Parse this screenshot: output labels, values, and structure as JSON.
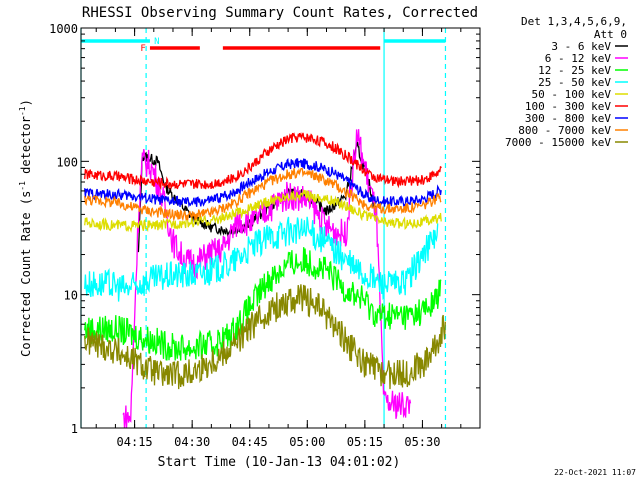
{
  "chart_data": {
    "type": "line",
    "title": "RHESSI Observing Summary Count Rates, Corrected",
    "xlabel": "Start Time (10-Jan-13 04:01:02)",
    "ylabel_main": "Corrected Count Rate (s",
    "ylabel_sup1": "-1",
    "ylabel_mid": " detector",
    "ylabel_sup2": "-1",
    "ylabel_end": ")",
    "y_scale": "log",
    "ylim": [
      1,
      1000
    ],
    "xlim": [
      "04:01:02",
      "05:45:00"
    ],
    "x_ticks": [
      "04:15",
      "04:30",
      "04:45",
      "05:00",
      "05:15",
      "05:30"
    ],
    "y_ticks": [
      "1",
      "10",
      "100",
      "1000"
    ],
    "legend_header": [
      "Det 1,3,4,5,6,9,",
      "Att 0"
    ],
    "legend_position": "right",
    "series": [
      {
        "name": "3 - 6 keV",
        "color": "#000000",
        "points": [
          [
            "04:16",
            20
          ],
          [
            "04:17",
            110
          ],
          [
            "04:19",
            105
          ],
          [
            "04:21",
            100
          ],
          [
            "04:23",
            65
          ],
          [
            "04:25",
            55
          ],
          [
            "04:30",
            38
          ],
          [
            "04:35",
            32
          ],
          [
            "04:40",
            30
          ],
          [
            "04:45",
            34
          ],
          [
            "04:50",
            45
          ],
          [
            "04:55",
            58
          ],
          [
            "05:00",
            55
          ],
          [
            "05:05",
            42
          ],
          [
            "05:10",
            55
          ],
          [
            "05:13",
            130
          ],
          [
            "05:16",
            70
          ],
          [
            "05:18",
            40
          ]
        ]
      },
      {
        "name": "6 - 12 keV",
        "color": "#ff00ff",
        "points": [
          [
            "04:12",
            1.2
          ],
          [
            "04:14",
            1.2
          ],
          [
            "04:16",
            40
          ],
          [
            "04:17",
            100
          ],
          [
            "04:19",
            95
          ],
          [
            "04:21",
            70
          ],
          [
            "04:23",
            45
          ],
          [
            "04:25",
            25
          ],
          [
            "04:28",
            18
          ],
          [
            "04:31",
            17
          ],
          [
            "04:34",
            20
          ],
          [
            "04:38",
            22
          ],
          [
            "04:42",
            36
          ],
          [
            "04:46",
            35
          ],
          [
            "04:50",
            44
          ],
          [
            "04:55",
            56
          ],
          [
            "05:00",
            52
          ],
          [
            "05:05",
            32
          ],
          [
            "05:10",
            28
          ],
          [
            "05:13",
            160
          ],
          [
            "05:15",
            90
          ],
          [
            "05:18",
            40
          ],
          [
            "05:20",
            1.5
          ],
          [
            "05:27",
            1.5
          ]
        ]
      },
      {
        "name": "12 - 25 keV",
        "color": "#00ff00",
        "points": [
          [
            "04:02",
            5.5
          ],
          [
            "04:10",
            5.5
          ],
          [
            "04:15",
            5.0
          ],
          [
            "04:20",
            4.5
          ],
          [
            "04:25",
            4.0
          ],
          [
            "04:30",
            4.0
          ],
          [
            "04:35",
            4.2
          ],
          [
            "04:40",
            5.0
          ],
          [
            "04:45",
            8.0
          ],
          [
            "04:50",
            13
          ],
          [
            "04:55",
            17
          ],
          [
            "05:00",
            18
          ],
          [
            "05:05",
            15
          ],
          [
            "05:10",
            11
          ],
          [
            "05:15",
            9
          ],
          [
            "05:18",
            7
          ],
          [
            "05:22",
            7
          ],
          [
            "05:27",
            7
          ],
          [
            "05:32",
            8
          ],
          [
            "05:35",
            11
          ]
        ]
      },
      {
        "name": "25 - 50 keV",
        "color": "#00ffff",
        "points": [
          [
            "04:02",
            12
          ],
          [
            "04:08",
            12
          ],
          [
            "04:13",
            11
          ],
          [
            "04:16",
            12
          ],
          [
            "04:20",
            13
          ],
          [
            "04:25",
            14
          ],
          [
            "04:30",
            14
          ],
          [
            "04:35",
            15
          ],
          [
            "04:40",
            17
          ],
          [
            "04:45",
            22
          ],
          [
            "04:50",
            27
          ],
          [
            "04:55",
            30
          ],
          [
            "05:00",
            30
          ],
          [
            "05:05",
            25
          ],
          [
            "05:10",
            18
          ],
          [
            "05:15",
            14
          ],
          [
            "05:20",
            12
          ],
          [
            "05:25",
            12
          ],
          [
            "05:28",
            16
          ],
          [
            "05:31",
            22
          ],
          [
            "05:34",
            30
          ]
        ]
      },
      {
        "name": "50 - 100 keV",
        "color": "#dddd00",
        "points": [
          [
            "04:02",
            35
          ],
          [
            "04:05",
            34
          ],
          [
            "04:10",
            33
          ],
          [
            "04:15",
            33
          ],
          [
            "04:20",
            33
          ],
          [
            "04:25",
            34
          ],
          [
            "04:30",
            35
          ],
          [
            "04:35",
            36
          ],
          [
            "04:40",
            39
          ],
          [
            "04:45",
            44
          ],
          [
            "04:50",
            50
          ],
          [
            "04:55",
            55
          ],
          [
            "05:00",
            56
          ],
          [
            "05:05",
            52
          ],
          [
            "05:10",
            47
          ],
          [
            "05:15",
            39
          ],
          [
            "05:20",
            35
          ],
          [
            "05:25",
            34
          ],
          [
            "05:30",
            35
          ],
          [
            "05:35",
            38
          ]
        ]
      },
      {
        "name": "100 - 300 keV",
        "color": "#ff0000",
        "points": [
          [
            "04:02",
            80
          ],
          [
            "04:05",
            79
          ],
          [
            "04:10",
            77
          ],
          [
            "04:15",
            73
          ],
          [
            "04:20",
            70
          ],
          [
            "04:25",
            68
          ],
          [
            "04:30",
            67
          ],
          [
            "04:35",
            68
          ],
          [
            "04:40",
            73
          ],
          [
            "04:45",
            90
          ],
          [
            "04:50",
            120
          ],
          [
            "04:55",
            148
          ],
          [
            "04:58",
            153
          ],
          [
            "05:02",
            148
          ],
          [
            "05:07",
            128
          ],
          [
            "05:12",
            100
          ],
          [
            "05:16",
            80
          ],
          [
            "05:20",
            72
          ],
          [
            "05:25",
            71
          ],
          [
            "05:30",
            72
          ],
          [
            "05:35",
            85
          ]
        ]
      },
      {
        "name": "300 - 800 keV",
        "color": "#0000ff",
        "points": [
          [
            "04:02",
            58
          ],
          [
            "04:05",
            57
          ],
          [
            "04:10",
            56
          ],
          [
            "04:15",
            55
          ],
          [
            "04:20",
            52
          ],
          [
            "04:25",
            50
          ],
          [
            "04:30",
            49
          ],
          [
            "04:35",
            51
          ],
          [
            "04:40",
            57
          ],
          [
            "04:45",
            70
          ],
          [
            "04:50",
            83
          ],
          [
            "04:55",
            95
          ],
          [
            "04:58",
            97
          ],
          [
            "05:02",
            93
          ],
          [
            "05:07",
            82
          ],
          [
            "05:12",
            66
          ],
          [
            "05:16",
            53
          ],
          [
            "05:20",
            50
          ],
          [
            "05:25",
            50
          ],
          [
            "05:30",
            52
          ],
          [
            "05:35",
            62
          ]
        ]
      },
      {
        "name": "800 - 7000 keV",
        "color": "#ff8000",
        "points": [
          [
            "04:02",
            52
          ],
          [
            "04:05",
            51
          ],
          [
            "04:10",
            49
          ],
          [
            "04:15",
            45
          ],
          [
            "04:20",
            42
          ],
          [
            "04:25",
            40
          ],
          [
            "04:30",
            39
          ],
          [
            "04:35",
            41
          ],
          [
            "04:40",
            47
          ],
          [
            "04:45",
            58
          ],
          [
            "04:50",
            70
          ],
          [
            "04:55",
            80
          ],
          [
            "04:58",
            82
          ],
          [
            "05:02",
            78
          ],
          [
            "05:07",
            67
          ],
          [
            "05:12",
            54
          ],
          [
            "05:16",
            46
          ],
          [
            "05:20",
            44
          ],
          [
            "05:25",
            44
          ],
          [
            "05:30",
            46
          ],
          [
            "05:35",
            55
          ]
        ]
      },
      {
        "name": "7000 - 15000 keV",
        "color": "#888800",
        "points": [
          [
            "04:02",
            4.5
          ],
          [
            "04:06",
            4.2
          ],
          [
            "04:10",
            3.8
          ],
          [
            "04:14",
            3.3
          ],
          [
            "04:18",
            2.8
          ],
          [
            "04:22",
            2.5
          ],
          [
            "04:26",
            2.5
          ],
          [
            "04:30",
            2.6
          ],
          [
            "04:34",
            3.0
          ],
          [
            "04:38",
            3.6
          ],
          [
            "04:42",
            4.5
          ],
          [
            "04:46",
            6.0
          ],
          [
            "04:50",
            7.5
          ],
          [
            "04:55",
            9.0
          ],
          [
            "04:58",
            9.5
          ],
          [
            "05:02",
            8.5
          ],
          [
            "05:06",
            6.5
          ],
          [
            "05:10",
            4.5
          ],
          [
            "05:14",
            3.2
          ],
          [
            "05:18",
            2.7
          ],
          [
            "05:22",
            2.5
          ],
          [
            "05:26",
            2.6
          ],
          [
            "05:30",
            3.0
          ],
          [
            "05:33",
            4.0
          ],
          [
            "05:36",
            6.0
          ]
        ]
      }
    ],
    "top_bars": [
      {
        "color": "#00ffff",
        "segments": [
          [
            "04:01:02",
            "04:19"
          ],
          [
            "05:20",
            "05:36"
          ]
        ]
      },
      {
        "color": "#ff0000",
        "segments": [
          [
            "04:19",
            "04:32"
          ],
          [
            "04:38",
            "05:19"
          ]
        ]
      }
    ],
    "flags": [
      {
        "label": "F",
        "time": "04:18",
        "color": "#ff0000"
      },
      {
        "label": "N",
        "time": "04:20",
        "color": "#00ffff"
      }
    ],
    "vertical_lines": [
      {
        "time": "04:01:02",
        "color": "#00ffff",
        "style": "solid"
      },
      {
        "time": "04:18",
        "color": "#00ffff",
        "style": "dashed"
      },
      {
        "time": "05:20",
        "color": "#00ffff",
        "style": "solid"
      },
      {
        "time": "05:36",
        "color": "#00ffff",
        "style": "dashed"
      }
    ],
    "footer": "22-Oct-2021 11:07"
  }
}
